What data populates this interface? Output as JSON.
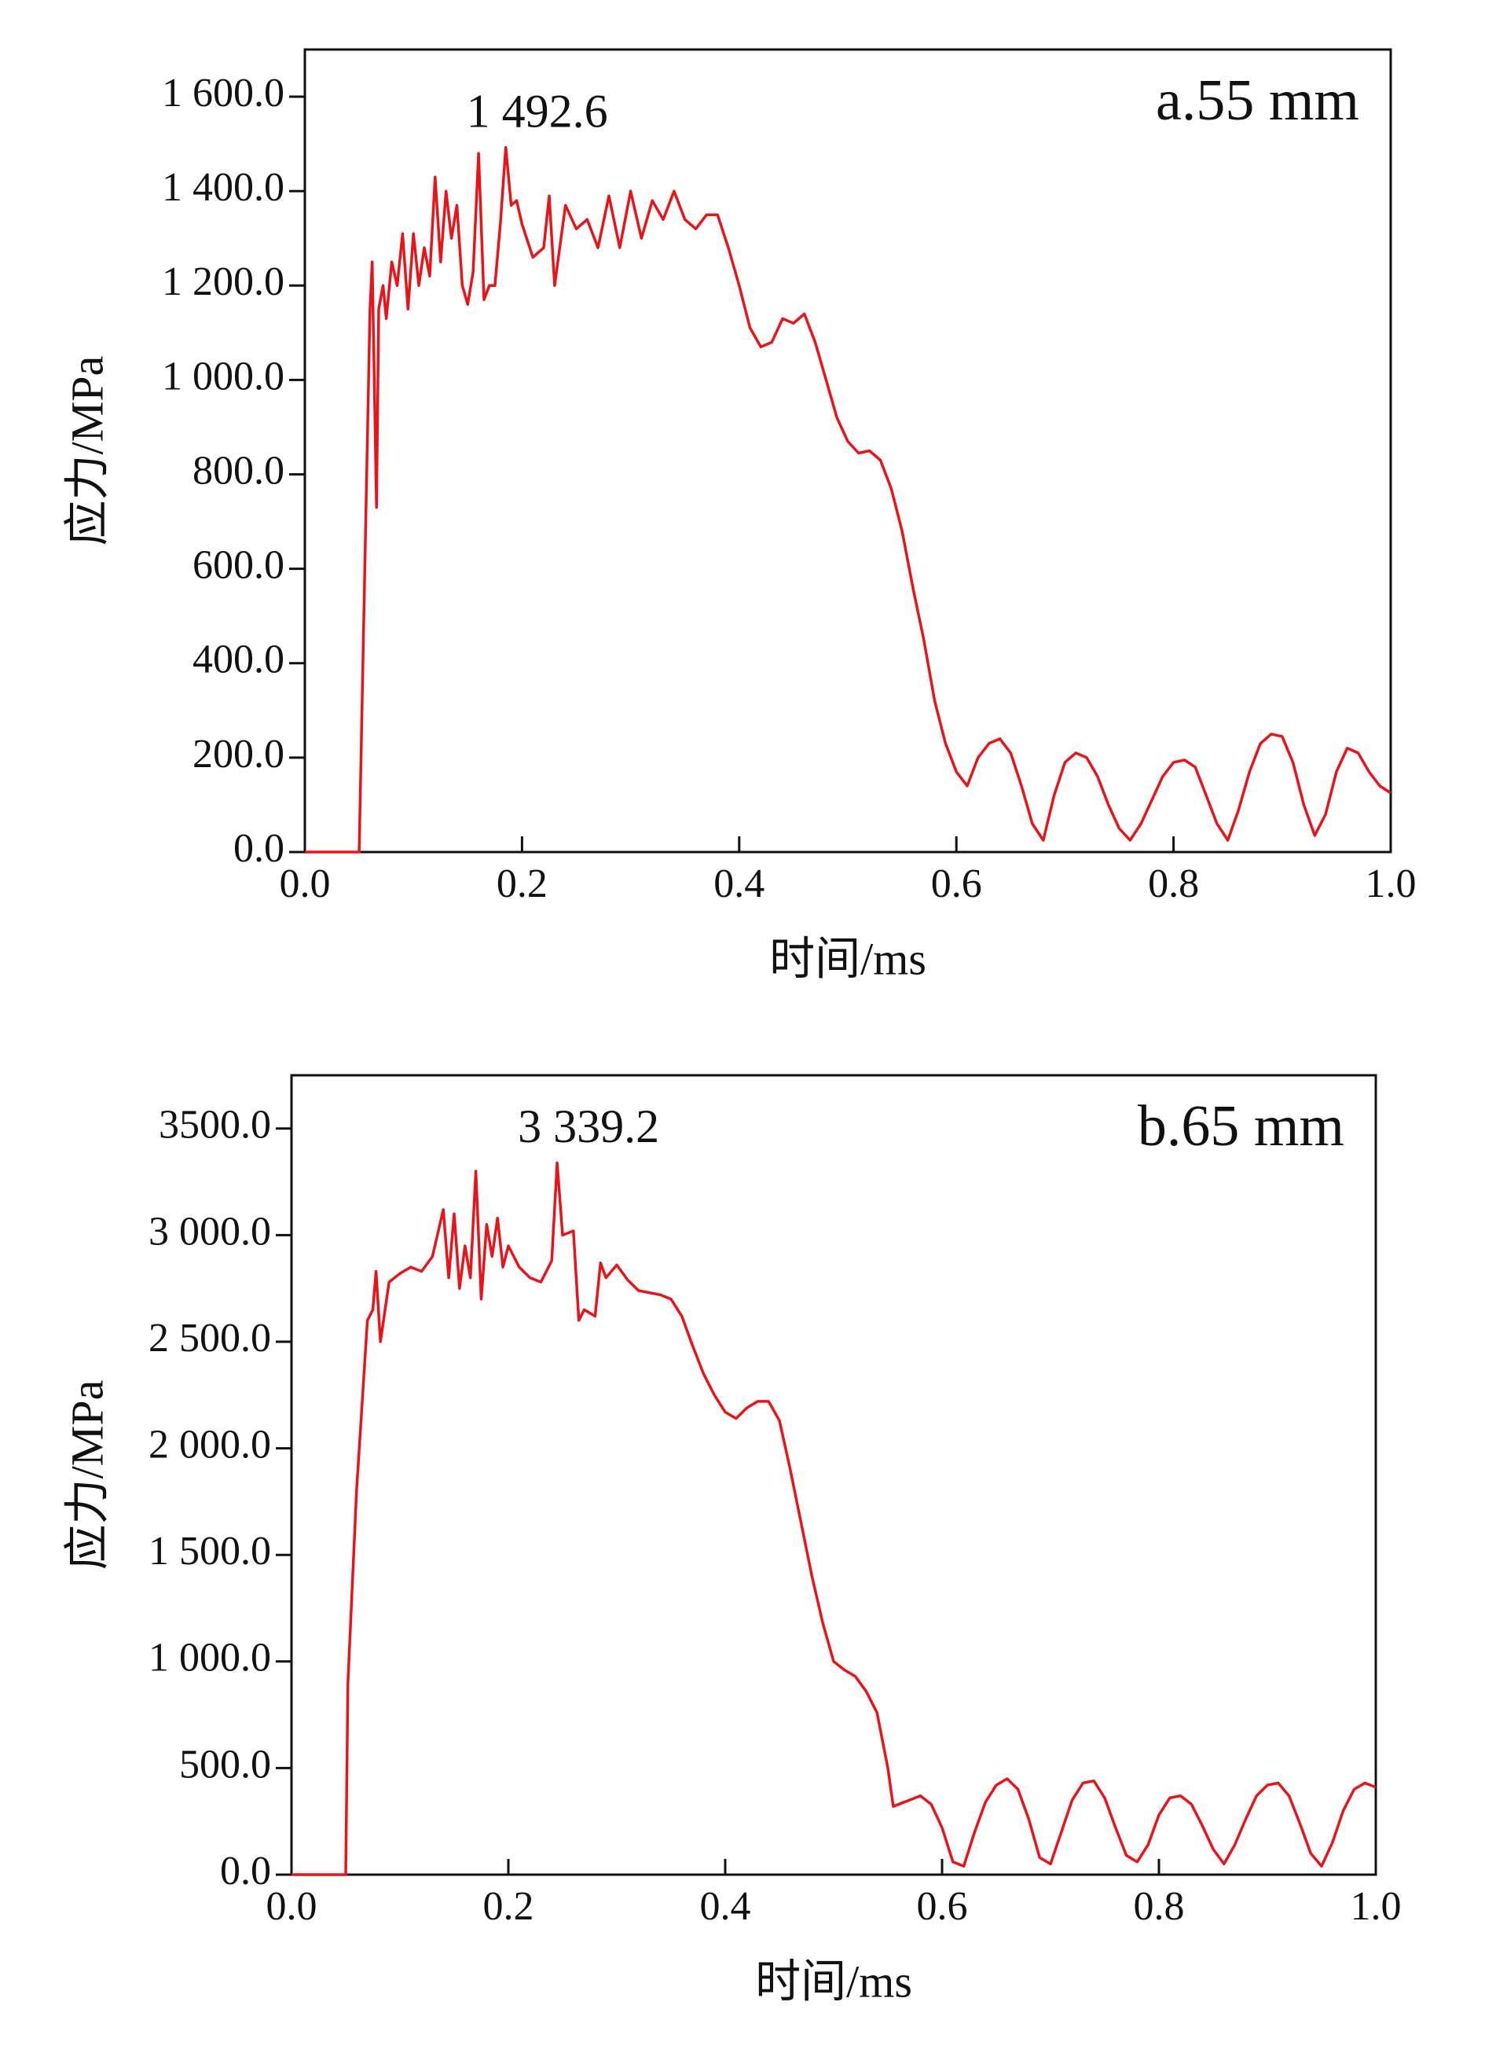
{
  "chart_data": [
    {
      "type": "line",
      "panel_label": "a.55 mm",
      "annotation": "1 492.6",
      "xlabel": "时间/ms",
      "ylabel": "应力/MPa",
      "xlim": [
        0,
        1.0
      ],
      "ylim": [
        0,
        1700
      ],
      "xticks": [
        {
          "value": 0,
          "label": "0.0"
        },
        {
          "value": 0.2,
          "label": "0.2"
        },
        {
          "value": 0.4,
          "label": "0.4"
        },
        {
          "value": 0.6,
          "label": "0.6"
        },
        {
          "value": 0.8,
          "label": "0.8"
        },
        {
          "value": 1.0,
          "label": "1.0"
        }
      ],
      "yticks": [
        {
          "value": 0,
          "label": "0.0"
        },
        {
          "value": 200,
          "label": "200.0"
        },
        {
          "value": 400,
          "label": "400.0"
        },
        {
          "value": 600,
          "label": "600.0"
        },
        {
          "value": 800,
          "label": "800.0"
        },
        {
          "value": 1000,
          "label": "1 000.0"
        },
        {
          "value": 1200,
          "label": "1 200.0"
        },
        {
          "value": 1400,
          "label": "1 400.0"
        },
        {
          "value": 1600,
          "label": "1 600.0"
        }
      ],
      "x": [
        0,
        0.05,
        0.06,
        0.062,
        0.066,
        0.068,
        0.072,
        0.075,
        0.08,
        0.085,
        0.09,
        0.095,
        0.1,
        0.105,
        0.11,
        0.115,
        0.12,
        0.125,
        0.13,
        0.135,
        0.14,
        0.145,
        0.15,
        0.155,
        0.16,
        0.165,
        0.17,
        0.175,
        0.18,
        0.185,
        0.19,
        0.195,
        0.2,
        0.21,
        0.22,
        0.225,
        0.23,
        0.24,
        0.25,
        0.26,
        0.27,
        0.28,
        0.29,
        0.3,
        0.31,
        0.32,
        0.33,
        0.34,
        0.35,
        0.36,
        0.37,
        0.38,
        0.39,
        0.4,
        0.41,
        0.42,
        0.43,
        0.44,
        0.45,
        0.46,
        0.47,
        0.48,
        0.49,
        0.5,
        0.51,
        0.52,
        0.53,
        0.54,
        0.55,
        0.56,
        0.57,
        0.58,
        0.59,
        0.6,
        0.61,
        0.62,
        0.63,
        0.64,
        0.65,
        0.66,
        0.67,
        0.68,
        0.69,
        0.7,
        0.71,
        0.72,
        0.73,
        0.74,
        0.75,
        0.76,
        0.77,
        0.78,
        0.79,
        0.8,
        0.81,
        0.82,
        0.83,
        0.84,
        0.85,
        0.86,
        0.87,
        0.88,
        0.89,
        0.9,
        0.91,
        0.92,
        0.93,
        0.94,
        0.95,
        0.96,
        0.97,
        0.98,
        0.99,
        1.0
      ],
      "series": [
        {
          "color": "#e8141a",
          "values": [
            0,
            0,
            1150,
            1250,
            730,
            1150,
            1200,
            1130,
            1250,
            1200,
            1310,
            1150,
            1310,
            1200,
            1280,
            1220,
            1430,
            1250,
            1400,
            1300,
            1370,
            1200,
            1160,
            1230,
            1480,
            1170,
            1200,
            1200,
            1330,
            1492.6,
            1370,
            1380,
            1330,
            1260,
            1280,
            1390,
            1200,
            1370,
            1320,
            1340,
            1280,
            1390,
            1280,
            1400,
            1300,
            1380,
            1340,
            1400,
            1340,
            1320,
            1350,
            1350,
            1280,
            1200,
            1110,
            1070,
            1080,
            1130,
            1120,
            1140,
            1080,
            1000,
            920,
            870,
            845,
            850,
            830,
            770,
            680,
            560,
            450,
            320,
            230,
            170,
            140,
            200,
            230,
            240,
            210,
            140,
            60,
            25,
            120,
            190,
            210,
            200,
            160,
            100,
            50,
            25,
            60,
            110,
            160,
            190,
            195,
            180,
            120,
            60,
            25,
            90,
            170,
            230,
            250,
            245,
            190,
            100,
            35,
            80,
            170,
            220,
            210,
            170,
            140,
            125
          ]
        }
      ]
    },
    {
      "type": "line",
      "panel_label": "b.65 mm",
      "annotation": "3 339.2",
      "xlabel": "时间/ms",
      "ylabel": "应力/MPa",
      "xlim": [
        0,
        1.0
      ],
      "ylim": [
        0,
        3750
      ],
      "xticks": [
        {
          "value": 0,
          "label": "0.0"
        },
        {
          "value": 0.2,
          "label": "0.2"
        },
        {
          "value": 0.4,
          "label": "0.4"
        },
        {
          "value": 0.6,
          "label": "0.6"
        },
        {
          "value": 0.8,
          "label": "0.8"
        },
        {
          "value": 1.0,
          "label": "1.0"
        }
      ],
      "yticks": [
        {
          "value": 0,
          "label": "0.0"
        },
        {
          "value": 500,
          "label": "500.0"
        },
        {
          "value": 1000,
          "label": "1 000.0"
        },
        {
          "value": 1500,
          "label": "1 500.0"
        },
        {
          "value": 2000,
          "label": "2 000.0"
        },
        {
          "value": 2500,
          "label": "2 500.0"
        },
        {
          "value": 3000,
          "label": "3 000.0"
        },
        {
          "value": 3500,
          "label": "3500.0"
        }
      ],
      "x": [
        0,
        0.05,
        0.052,
        0.06,
        0.07,
        0.075,
        0.078,
        0.082,
        0.09,
        0.1,
        0.11,
        0.12,
        0.13,
        0.14,
        0.145,
        0.15,
        0.155,
        0.16,
        0.165,
        0.17,
        0.175,
        0.18,
        0.185,
        0.19,
        0.195,
        0.2,
        0.21,
        0.22,
        0.23,
        0.24,
        0.245,
        0.25,
        0.26,
        0.265,
        0.27,
        0.28,
        0.285,
        0.29,
        0.3,
        0.31,
        0.32,
        0.33,
        0.34,
        0.35,
        0.36,
        0.37,
        0.38,
        0.39,
        0.4,
        0.41,
        0.42,
        0.43,
        0.44,
        0.45,
        0.46,
        0.47,
        0.48,
        0.49,
        0.5,
        0.51,
        0.52,
        0.53,
        0.54,
        0.55,
        0.555,
        0.57,
        0.58,
        0.59,
        0.6,
        0.61,
        0.62,
        0.63,
        0.64,
        0.65,
        0.66,
        0.67,
        0.68,
        0.69,
        0.7,
        0.71,
        0.72,
        0.73,
        0.74,
        0.75,
        0.76,
        0.77,
        0.78,
        0.79,
        0.8,
        0.81,
        0.82,
        0.83,
        0.84,
        0.85,
        0.86,
        0.87,
        0.88,
        0.89,
        0.9,
        0.91,
        0.92,
        0.93,
        0.94,
        0.95,
        0.96,
        0.97,
        0.98,
        0.99,
        1.0
      ],
      "series": [
        {
          "color": "#e8141a",
          "values": [
            0,
            0,
            900,
            1800,
            2600,
            2650,
            2830,
            2500,
            2780,
            2820,
            2850,
            2830,
            2900,
            3120,
            2800,
            3100,
            2750,
            2950,
            2800,
            3300,
            2700,
            3050,
            2900,
            3080,
            2850,
            2950,
            2850,
            2800,
            2780,
            2880,
            3339.2,
            3000,
            3020,
            2600,
            2650,
            2620,
            2870,
            2800,
            2860,
            2790,
            2740,
            2730,
            2720,
            2700,
            2620,
            2480,
            2350,
            2250,
            2170,
            2140,
            2190,
            2220,
            2220,
            2130,
            1900,
            1650,
            1400,
            1180,
            1000,
            960,
            930,
            860,
            760,
            500,
            320,
            350,
            370,
            330,
            220,
            60,
            40,
            200,
            340,
            420,
            450,
            400,
            260,
            80,
            50,
            200,
            350,
            430,
            440,
            360,
            220,
            90,
            60,
            140,
            280,
            360,
            370,
            330,
            230,
            120,
            50,
            140,
            260,
            370,
            420,
            430,
            370,
            240,
            100,
            40,
            150,
            300,
            400,
            430,
            410
          ]
        }
      ]
    }
  ]
}
